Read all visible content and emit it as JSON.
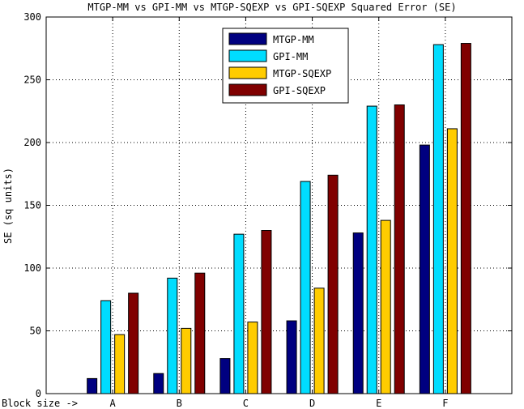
{
  "chart_data": {
    "type": "bar",
    "title": "MTGP-MM vs GPI-MM vs MTGP-SQEXP vs GPI-SQEXP Squared Error (SE)",
    "xlabel": "Block size ->",
    "ylabel": "SE (sq units)",
    "categories": [
      "A",
      "B",
      "C",
      "D",
      "E",
      "F"
    ],
    "ylim": [
      0,
      300
    ],
    "yticks": [
      0,
      50,
      100,
      150,
      200,
      250,
      300
    ],
    "grid": true,
    "legend_position": "top-center",
    "series": [
      {
        "name": "MTGP-MM",
        "color": "#000080",
        "values": [
          12,
          16,
          28,
          58,
          128,
          198
        ]
      },
      {
        "name": "GPI-MM",
        "color": "#00ddff",
        "values": [
          74,
          92,
          127,
          169,
          229,
          278
        ]
      },
      {
        "name": "MTGP-SQEXP",
        "color": "#ffcc00",
        "values": [
          47,
          52,
          57,
          84,
          138,
          211
        ]
      },
      {
        "name": "GPI-SQEXP",
        "color": "#800000",
        "values": [
          80,
          96,
          130,
          174,
          230,
          279
        ]
      }
    ]
  }
}
